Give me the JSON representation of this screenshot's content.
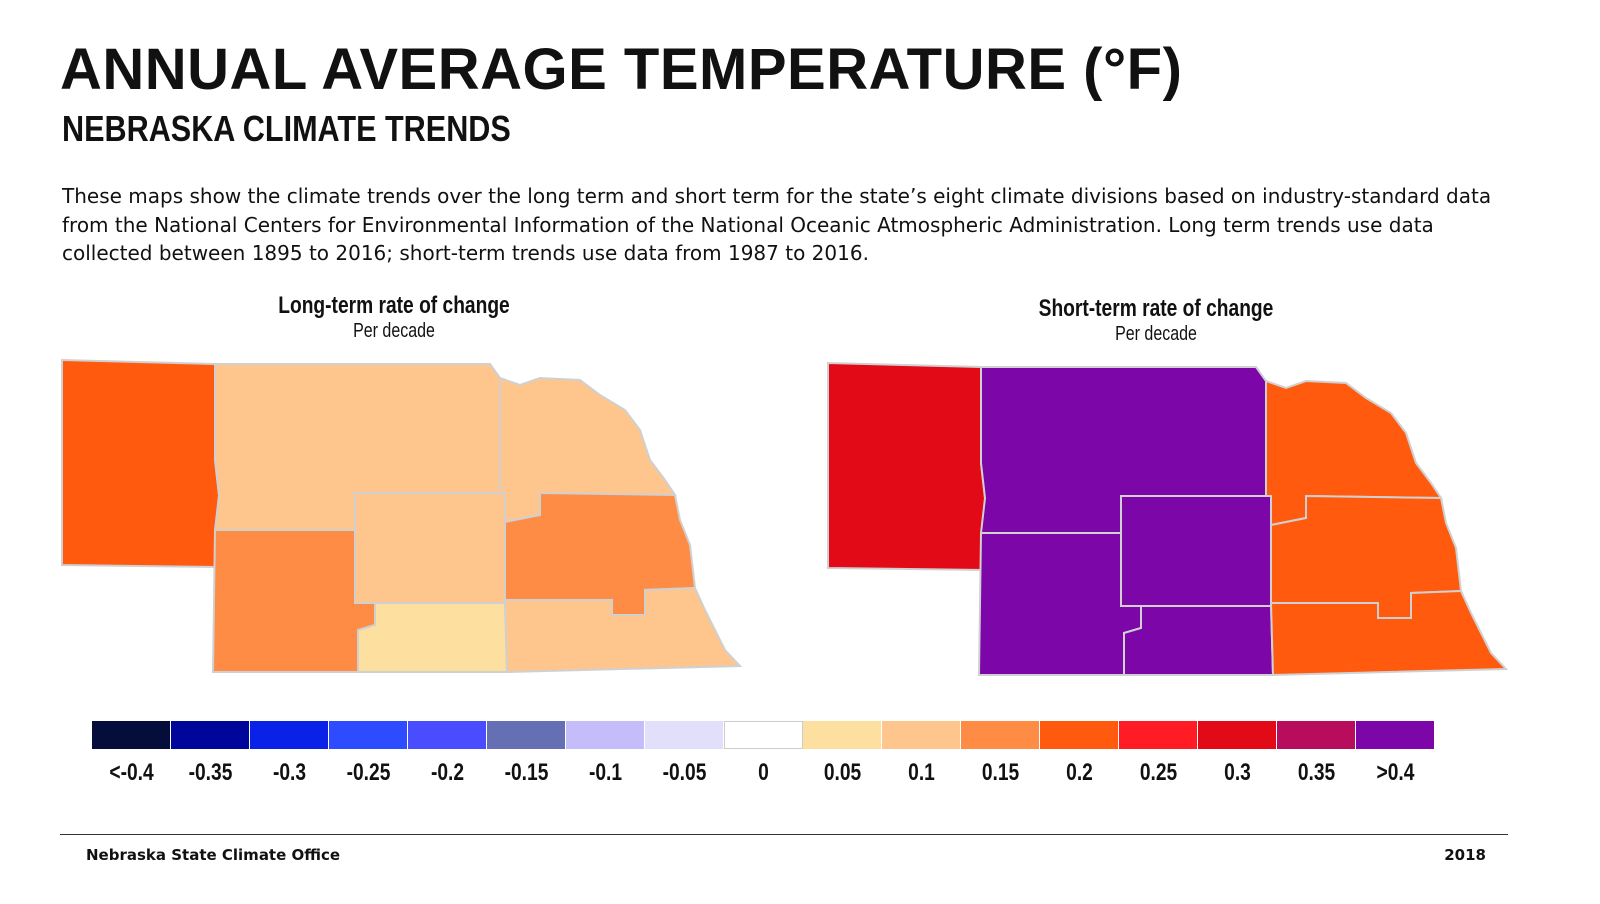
{
  "title": "ANNUAL AVERAGE TEMPERATURE (°F)",
  "subtitle": "NEBRASKA CLIMATE TRENDS",
  "description": "These maps show the climate trends over the long term and short term for the state’s eight climate divisions based on industry-standard data from the National Centers for Environmental Information of the National Oceanic Atmospheric Administration. Long term trends use data collected between 1895 to 2016; short-term trends use data from 1987 to 2016.",
  "maps": [
    {
      "title": "Long-term rate of change",
      "subtitle": "Per decade",
      "divisions": {
        "panhandle": 0.2,
        "north_central": 0.1,
        "northeast": 0.1,
        "central": 0.1,
        "east_central": 0.15,
        "southwest": 0.15,
        "south_central": 0.05,
        "southeast": 0.1
      }
    },
    {
      "title": "Short-term rate of change",
      "subtitle": "Per decade",
      "divisions": {
        "panhandle": 0.3,
        "north_central": 0.4,
        "northeast": 0.2,
        "central": 0.4,
        "east_central": 0.2,
        "southwest": 0.4,
        "south_central": 0.4,
        "southeast": 0.2
      }
    }
  ],
  "legend": [
    {
      "label": "<-0.4",
      "color": "#050d3a"
    },
    {
      "label": "-0.35",
      "color": "#00069a"
    },
    {
      "label": "-0.3",
      "color": "#0a22e8"
    },
    {
      "label": "-0.25",
      "color": "#2d4bff"
    },
    {
      "label": "-0.2",
      "color": "#4a4cff"
    },
    {
      "label": "-0.15",
      "color": "#6570b4"
    },
    {
      "label": "-0.1",
      "color": "#c4bdfa"
    },
    {
      "label": "-0.05",
      "color": "#e2dffb"
    },
    {
      "label": "0",
      "color": "#ffffff"
    },
    {
      "label": "0.05",
      "color": "#fde0a0"
    },
    {
      "label": "0.1",
      "color": "#fec58c"
    },
    {
      "label": "0.15",
      "color": "#fe8c44"
    },
    {
      "label": "0.2",
      "color": "#ff5a0e"
    },
    {
      "label": "0.25",
      "color": "#ff1c24"
    },
    {
      "label": "0.3",
      "color": "#e20a17"
    },
    {
      "label": "0.35",
      "color": "#b80c5c"
    },
    {
      "label": ">0.4",
      "color": "#7c06a8"
    }
  ],
  "footer": {
    "left": "Nebraska State Climate Office",
    "right": "2018"
  }
}
